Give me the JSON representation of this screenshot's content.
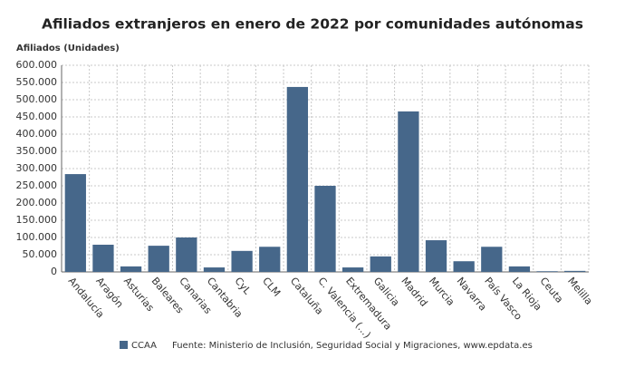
{
  "chart_data": {
    "type": "bar",
    "title": "Afiliados extranjeros en enero de 2022 por comunidades autónomas",
    "y_label": "Afiliados (Unidades)",
    "categories": [
      "Andalucía",
      "Aragón",
      "Asturias",
      "Baleares",
      "Canarias",
      "Cantabria",
      "CyL",
      "CLM",
      "Cataluña",
      "C. Valencia (...)",
      "Extremadura",
      "Galicia",
      "Madrid",
      "Murcia",
      "Navarra",
      "País Vasco",
      "La Rioja",
      "Ceuta",
      "Melilla"
    ],
    "series": [
      {
        "name": "CCAA",
        "color": "#46678a",
        "values": [
          284000,
          79000,
          16000,
          76000,
          100000,
          13000,
          61000,
          73000,
          537000,
          250000,
          13000,
          45000,
          466000,
          92000,
          31000,
          73000,
          16000,
          2000,
          3000
        ]
      }
    ],
    "ylim": [
      0,
      600000
    ],
    "yticks": [
      0,
      {
        "value": 50000,
        "label": "50.000"
      },
      {
        "value": 100000,
        "label": "100.000"
      },
      {
        "value": 150000,
        "label": "150.000"
      },
      {
        "value": 200000,
        "label": "200.000"
      },
      {
        "value": 250000,
        "label": "250.000"
      },
      {
        "value": 300000,
        "label": "300.000"
      },
      {
        "value": 350000,
        "label": "350.000"
      },
      {
        "value": 400000,
        "label": "400.000"
      },
      {
        "value": 450000,
        "label": "450.000"
      },
      {
        "value": 500000,
        "label": "500.000"
      },
      {
        "value": 550000,
        "label": "550.000"
      },
      {
        "value": 600000,
        "label": "600.000"
      }
    ],
    "grid": true,
    "source": "Fuente: Ministerio de Inclusión, Seguridad Social y Migraciones, www.epdata.es"
  }
}
